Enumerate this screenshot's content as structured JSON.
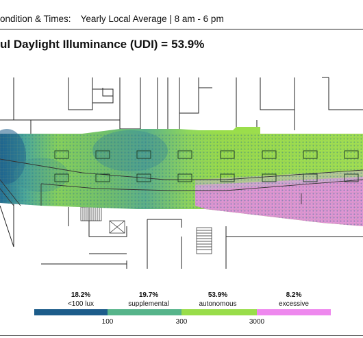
{
  "header": {
    "condition_label": "ondition & Times:",
    "condition_value": "Yearly Local Average | 8 am - 6 pm"
  },
  "title": {
    "text": "ul Daylight Illuminance (UDI) =",
    "value": "53.9%"
  },
  "legend": {
    "items": [
      {
        "value": "18.2%",
        "label": "<100 lux",
        "color": "#1c5c8a"
      },
      {
        "value": "19.7%",
        "label": "supplemental",
        "color": "#56b48a"
      },
      {
        "value": "53.9%",
        "label": "autonomous",
        "color": "#99dd4a"
      },
      {
        "value": "8.2%",
        "label": "excessive",
        "color": "#ee88ee"
      }
    ],
    "ticks": [
      "100",
      "300",
      "3000"
    ]
  }
}
